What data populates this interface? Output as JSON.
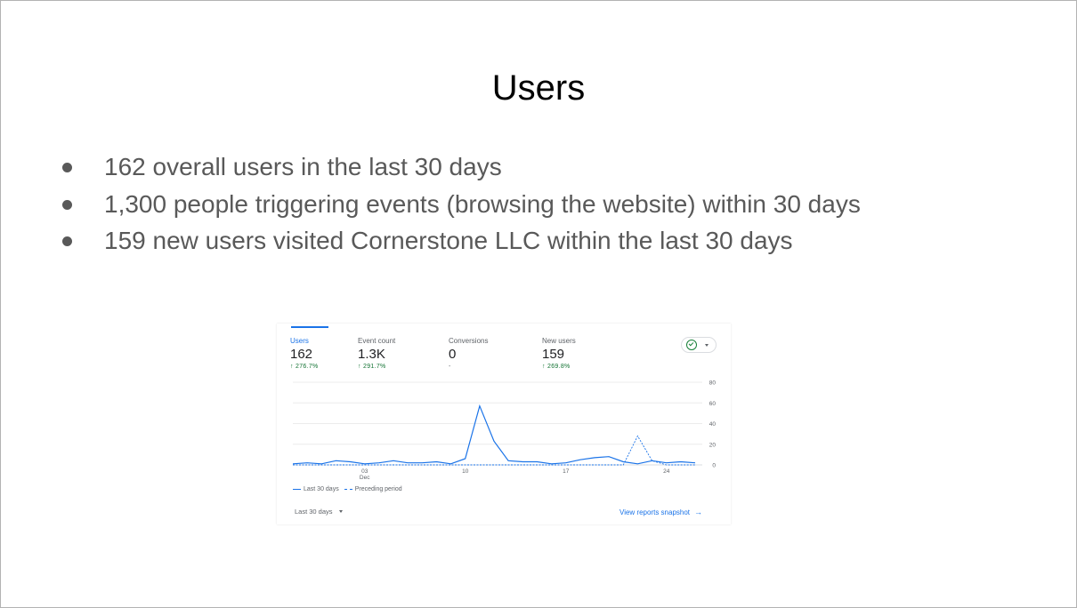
{
  "slide": {
    "title": "Users",
    "bullets": [
      "162 overall users in the last 30 days",
      "1,300 people triggering events (browsing the website) within 30 days",
      "159 new users visited Cornerstone LLC within the last 30 days"
    ]
  },
  "card": {
    "metrics": [
      {
        "label": "Users",
        "value": "162",
        "change": "↑ 276.7%",
        "active": true
      },
      {
        "label": "Event count",
        "value": "1.3K",
        "change": "↑ 291.7%"
      },
      {
        "label": "Conversions",
        "value": "0",
        "change": "-"
      },
      {
        "label": "New users",
        "value": "159",
        "change": "↑ 269.8%"
      }
    ],
    "status_icon": "check-circle-icon",
    "legend": {
      "current": "Last 30 days",
      "previous": "Preceding period"
    },
    "date_range": "Last 30 days",
    "view_link": "View reports snapshot",
    "colors": {
      "accent": "#1a73e8",
      "positive": "#137333"
    }
  },
  "chart_data": {
    "type": "line",
    "x_tick_labels": [
      {
        "day": 3,
        "label": "03",
        "sublabel": "Dec"
      },
      {
        "day": 10,
        "label": "10"
      },
      {
        "day": 17,
        "label": "17"
      },
      {
        "day": 24,
        "label": "24"
      }
    ],
    "y_ticks": [
      0,
      20,
      40,
      60,
      80
    ],
    "ylim": [
      0,
      80
    ],
    "x": [
      -2,
      -1,
      0,
      1,
      2,
      3,
      4,
      5,
      6,
      7,
      8,
      9,
      10,
      11,
      12,
      13,
      14,
      15,
      16,
      17,
      18,
      19,
      20,
      21,
      22,
      23,
      24,
      25,
      26
    ],
    "series": [
      {
        "name": "Last 30 days",
        "style": "solid",
        "values": [
          1,
          2,
          1,
          4,
          3,
          1,
          2,
          4,
          2,
          2,
          3,
          1,
          6,
          57,
          23,
          4,
          3,
          3,
          1,
          2,
          5,
          7,
          8,
          3,
          1,
          4,
          2,
          3,
          2
        ]
      },
      {
        "name": "Preceding period",
        "style": "dashed",
        "values": [
          0,
          0,
          0,
          0,
          0,
          0,
          0,
          0,
          0,
          0,
          0,
          0,
          0,
          0,
          0,
          0,
          0,
          0,
          0,
          0,
          0,
          0,
          0,
          0,
          28,
          4,
          0,
          0,
          0
        ]
      }
    ],
    "grid": true
  }
}
